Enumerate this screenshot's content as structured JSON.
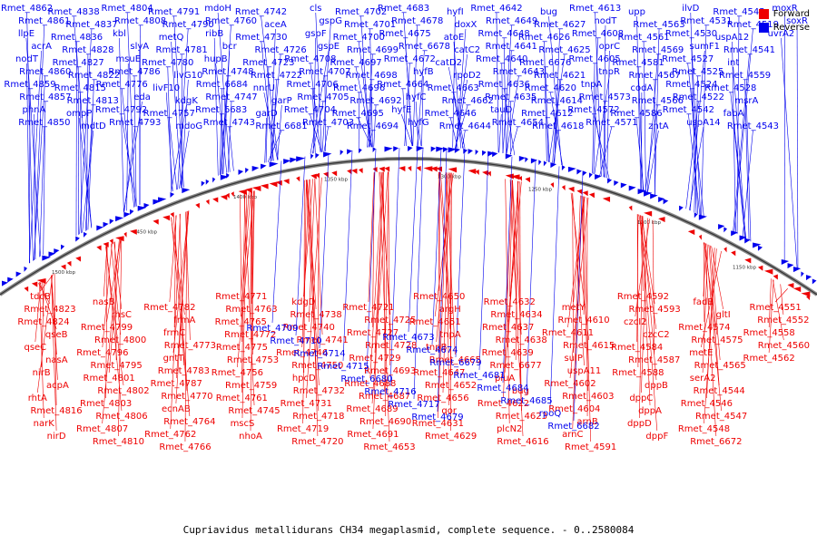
{
  "caption": "Cupriavidus metallidurans CH34 megaplasmid, complete sequence. - 0..2580084",
  "legend": [
    {
      "label": "Forward",
      "color": "#ee0000"
    },
    {
      "label": "Reverse",
      "color": "#0000ee"
    }
  ],
  "colors": {
    "forward": "#ee0000",
    "reverse": "#0000ee",
    "axis": "#555555"
  },
  "ticks": [
    "1500 kbp",
    "1450 kbp",
    "1400 kbp",
    "1350 kbp",
    "1300 kbp",
    "1250 kbp",
    "1200 kbp",
    "1150 kbp"
  ],
  "reverse_labels": [
    "Rmet_4862",
    "Rmet_4861",
    "llpE",
    "acrA",
    "nodT",
    "Rmet_4860",
    "Rmet_4859",
    "Rmet_4857",
    "phnA",
    "Rmet_4850",
    "Rmet_4838",
    "Rmet_4837",
    "Rmet_4836",
    "Rmet_4828",
    "Rmet_4827",
    "Rmet_4822",
    "Rmet_4815",
    "Rmet_4813",
    "ompP",
    "mdtD",
    "Rmet_4804",
    "Rmet_4808",
    "kbl",
    "slyA",
    "msuE",
    "Rmet_4786",
    "Rmet_4776",
    "eda",
    "Rmet_4792",
    "Rmet_4793",
    "Rmet_4791",
    "Rmet_4790",
    "metQ",
    "Rmet_4781",
    "Rmet_4780",
    "livG10",
    "livF10",
    "kdgK",
    "Rmet_4757",
    "mdoG",
    "mdoH",
    "Rmet_4760",
    "ribB",
    "bcr",
    "hupB",
    "Rmet_4748",
    "Rmet_6684",
    "Rmet_4747",
    "Rmet_6683",
    "Rmet_4743",
    "Rmet_4742",
    "aceA",
    "Rmet_4730",
    "Rmet_4726",
    "Rmet_4723",
    "Rmet_4722",
    "nnrU",
    "garP",
    "garD",
    "Rmet_6681",
    "cls",
    "gspG",
    "gspF",
    "gspE",
    "Rmet_4708",
    "Rmet_4707",
    "Rmet_4706",
    "Rmet_4705",
    "Rmet_4704",
    "Rmet_4703",
    "Rmet_4702",
    "Rmet_4701",
    "Rmet_4700",
    "Rmet_4699",
    "Rmet_4697",
    "Rmet_4698",
    "Rmet_4696",
    "Rmet_4692",
    "Rmet_4695",
    "Rmet_4694",
    "Rmet_4683",
    "Rmet_4678",
    "Rmet_4675",
    "Rmet_6678",
    "Rmet_4672",
    "hyfB",
    "Rmet_4664",
    "hyfC",
    "hyfE",
    "hyfG",
    "hyfI",
    "doxX",
    "atoE",
    "catC2",
    "catD2",
    "rpoD2",
    "Rmet_4663",
    "Rmet_4662",
    "Rmet_4646",
    "Rmet_4644",
    "Rmet_4642",
    "Rmet_4649",
    "Rmet_4648",
    "Rmet_4641",
    "Rmet_4640",
    "Rmet_4643",
    "Rmet_4636",
    "Rmet_4635",
    "tauD",
    "Rmet_4654",
    "bug",
    "Rmet_4627",
    "Rmet_4626",
    "Rmet_4625",
    "Rmet_6676",
    "Rmet_4621",
    "Rmet_4620",
    "Rmet_4614",
    "Rmet_4612",
    "Rmet_4618",
    "Rmet_4613",
    "nodT",
    "Rmet_4608",
    "oprC",
    "Rmet_4605",
    "tnpR",
    "tnpA",
    "Rmet_4573",
    "Rmet_4572",
    "Rmet_4571",
    "upp",
    "Rmet_4563",
    "Rmet_4561",
    "Rmet_4569",
    "Rmet_4581",
    "Rmet_4567",
    "codA",
    "Rmet_4566",
    "Rmet_4586",
    "zntA",
    "ilvD",
    "Rmet_4531",
    "Rmet_4530",
    "sumF1",
    "Rmet_4527",
    "Rmet_4525",
    "Rmet_4524",
    "Rmet_4522",
    "Rmet_4542",
    "uspA14",
    "Rmet_4545",
    "Rmet_4519",
    "uspA12",
    "Rmet_4541",
    "int",
    "Rmet_4559",
    "Rmet_4528",
    "msrA",
    "fabA",
    "Rmet_4543",
    "moxR",
    "soxR",
    "uvrA2"
  ],
  "forward_labels": [
    "tdcB",
    "Rmet_4823",
    "Rmet_4824",
    "qseB",
    "qseC",
    "nasA",
    "nirB",
    "acpA",
    "rhtA",
    "Rmet_4816",
    "narK",
    "nirD",
    "nasB",
    "rhsC",
    "Rmet_4799",
    "Rmet_4800",
    "Rmet_4796",
    "Rmet_4795",
    "Rmet_4801",
    "Rmet_4802",
    "Rmet_4803",
    "Rmet_4806",
    "Rmet_4807",
    "Rmet_4810",
    "Rmet_4782",
    "frmA",
    "frmC",
    "Rmet_4773",
    "gntT",
    "Rmet_4783",
    "Rmet_4787",
    "Rmet_4770",
    "ecnAB",
    "Rmet_4764",
    "Rmet_4762",
    "Rmet_4766",
    "Rmet_4771",
    "Rmet_4763",
    "Rmet_4765",
    "Rmet_4772",
    "Rmet_4775",
    "Rmet_4753",
    "Rmet_4756",
    "Rmet_4759",
    "Rmet_4761",
    "Rmet_4745",
    "mscS",
    "nhoA",
    "kdgD",
    "Rmet_4738",
    "Rmet_4740",
    "Rmet_4741",
    "Rmet_4746",
    "Rmet_4750",
    "hpcD",
    "Rmet_4732",
    "Rmet_4731",
    "Rmet_4718",
    "Rmet_4719",
    "Rmet_4720",
    "Rmet_4721",
    "Rmet_4725",
    "Rmet_4727",
    "Rmet_4728",
    "Rmet_4729",
    "Rmet_4693",
    "Rmet_4688",
    "Rmet_4687",
    "Rmet_4689",
    "Rmet_4690",
    "Rmet_4691",
    "Rmet_4653",
    "Rmet_4650",
    "argH",
    "Rmet_4651",
    "tnpA",
    "tnpB",
    "Rmet_4665",
    "Rmet_4647",
    "Rmet_4652",
    "Rmet_4656",
    "qor",
    "Rmet_4631",
    "Rmet_4629",
    "Rmet_4632",
    "Rmet_4634",
    "Rmet_4637",
    "Rmet_4638",
    "Rmet_4639",
    "Rmet_6677",
    "piuA",
    "bug",
    "Rmet_4622",
    "Rmet_4623",
    "plcN2",
    "Rmet_4616",
    "metY",
    "Rmet_4610",
    "Rmet_4611",
    "Rmet_4615",
    "sulP",
    "uspA11",
    "Rmet_4602",
    "Rmet_4603",
    "Rmet_4604",
    "arnB",
    "arnC",
    "Rmet_4591",
    "Rmet_4592",
    "Rmet_4593",
    "czcI2",
    "czcC2",
    "Rmet_4584",
    "Rmet_4587",
    "Rmet_4588",
    "dppB",
    "dppC",
    "dppA",
    "dppD",
    "dppF",
    "fadB",
    "gltI",
    "Rmet_4574",
    "Rmet_4575",
    "metE",
    "Rmet_4565",
    "serA2",
    "Rmet_4544",
    "Rmet_4546",
    "Rmet_4547",
    "Rmet_4548",
    "Rmet_6672",
    "Rmet_4551",
    "Rmet_4552",
    "Rmet_4558",
    "Rmet_4560",
    "Rmet_4562"
  ],
  "blue_labels_in_forward_area": [
    "Rmet_4709",
    "Rmet_4710",
    "Rmet_4714",
    "Rmet_4715",
    "Rmet_6680",
    "Rmet_4716",
    "Rmet_4717",
    "Rmet_4679",
    "Rmet_4673",
    "Rmet_4674",
    "Rmet_6679",
    "Rmet_4681",
    "Rmet_4684",
    "Rmet_4685",
    "rpoQ",
    "Rmet_6682"
  ]
}
